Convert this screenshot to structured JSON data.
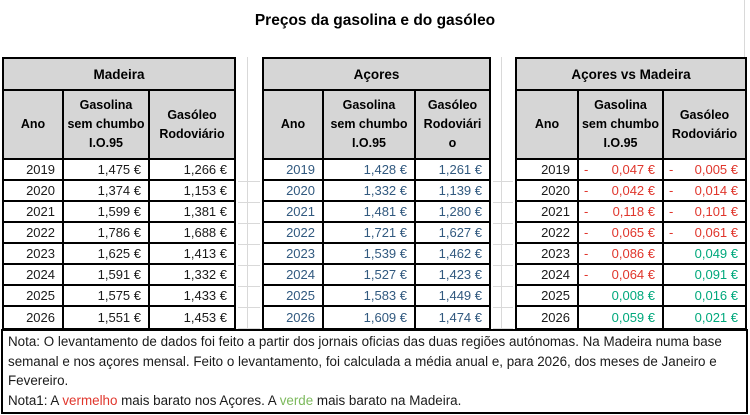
{
  "title": "Preços da gasolina e do gasóleo",
  "tables": [
    {
      "name": "Madeira",
      "col_ano": "Ano",
      "col_gasolina": [
        "Gasolina",
        "sem chumbo",
        "I.O.95"
      ],
      "col_gasoleo": [
        "Gasóleo",
        "Rodoviário"
      ],
      "rows": [
        {
          "year": "2019",
          "gasolina": "1,475 €",
          "gasoleo": "1,266 €"
        },
        {
          "year": "2020",
          "gasolina": "1,374 €",
          "gasoleo": "1,153 €"
        },
        {
          "year": "2021",
          "gasolina": "1,599 €",
          "gasoleo": "1,381 €"
        },
        {
          "year": "2022",
          "gasolina": "1,786 €",
          "gasoleo": "1,688 €"
        },
        {
          "year": "2023",
          "gasolina": "1,625 €",
          "gasoleo": "1,413 €"
        },
        {
          "year": "2024",
          "gasolina": "1,591 €",
          "gasoleo": "1,332 €"
        },
        {
          "year": "2025",
          "gasolina": "1,575 €",
          "gasoleo": "1,433 €"
        },
        {
          "year": "2026",
          "gasolina": "1,551 €",
          "gasoleo": "1,453 €"
        }
      ]
    },
    {
      "name": "Açores",
      "col_ano": "Ano",
      "col_gasolina": [
        "Gasolina",
        "sem chumbo",
        "I.O.95"
      ],
      "col_gasoleo": [
        "Gasóleo",
        "Rodoviári",
        "o"
      ],
      "rows": [
        {
          "year": "2019",
          "gasolina": "1,428 €",
          "gasoleo": "1,261 €"
        },
        {
          "year": "2020",
          "gasolina": "1,332 €",
          "gasoleo": "1,139 €"
        },
        {
          "year": "2021",
          "gasolina": "1,481 €",
          "gasoleo": "1,280 €"
        },
        {
          "year": "2022",
          "gasolina": "1,721 €",
          "gasoleo": "1,627 €"
        },
        {
          "year": "2023",
          "gasolina": "1,539 €",
          "gasoleo": "1,462 €"
        },
        {
          "year": "2024",
          "gasolina": "1,527 €",
          "gasoleo": "1,423 €"
        },
        {
          "year": "2025",
          "gasolina": "1,583 €",
          "gasoleo": "1,449 €"
        },
        {
          "year": "2026",
          "gasolina": "1,609 €",
          "gasoleo": "1,474 €"
        }
      ]
    },
    {
      "name": "Açores vs Madeira",
      "col_ano": "Ano",
      "col_gasolina": [
        "Gasolina",
        "sem chumbo",
        "I.O.95"
      ],
      "col_gasoleo": [
        "Gasóleo",
        "Rodoviário"
      ],
      "rows": [
        {
          "year": "2019",
          "g_sign": "-",
          "g_value": "0,047 €",
          "g_color": "red",
          "d_sign": "-",
          "d_value": "0,005 €",
          "d_color": "red"
        },
        {
          "year": "2020",
          "g_sign": "-",
          "g_value": "0,042 €",
          "g_color": "red",
          "d_sign": "-",
          "d_value": "0,014 €",
          "d_color": "red"
        },
        {
          "year": "2021",
          "g_sign": "-",
          "g_value": "0,118 €",
          "g_color": "red",
          "d_sign": "-",
          "d_value": "0,101 €",
          "d_color": "red"
        },
        {
          "year": "2022",
          "g_sign": "-",
          "g_value": "0,065 €",
          "g_color": "red",
          "d_sign": "-",
          "d_value": "0,061 €",
          "d_color": "red"
        },
        {
          "year": "2023",
          "g_sign": "-",
          "g_value": "0,086 €",
          "g_color": "red",
          "d_sign": "",
          "d_value": "0,049 €",
          "d_color": "green"
        },
        {
          "year": "2024",
          "g_sign": "-",
          "g_value": "0,064 €",
          "g_color": "red",
          "d_sign": "",
          "d_value": "0,091 €",
          "d_color": "green"
        },
        {
          "year": "2025",
          "g_sign": "",
          "g_value": "0,008 €",
          "g_color": "green",
          "d_sign": "",
          "d_value": "0,016 €",
          "d_color": "green"
        },
        {
          "year": "2026",
          "g_sign": "",
          "g_value": "0,059 €",
          "g_color": "green",
          "d_sign": "",
          "d_value": "0,021 €",
          "d_color": "green"
        }
      ]
    }
  ],
  "notes": {
    "nota_text": "Nota: O levantamento de dados foi feito a partir dos jornais oficias das duas regiões autónomas. Na Madeira numa base semanal e nos açores mensal. Feito o levantamento, foi calculada a média anual e, para 2026, dos meses de Janeiro e Fevereiro.",
    "nota1_parts": [
      {
        "text": "Nota1: A "
      },
      {
        "text": "vermelho"
      },
      {
        "text": " mais barato nos Açores. A "
      },
      {
        "text": "verde"
      },
      {
        "text": " mais barato na Madeira."
      }
    ]
  },
  "colors": {
    "cheaper_acores_red": "#e0362c",
    "cheaper_madeira_green": "#00a87c",
    "acores_values_blue": "#31597f",
    "header_fill_gray": "#d6d6d6"
  }
}
